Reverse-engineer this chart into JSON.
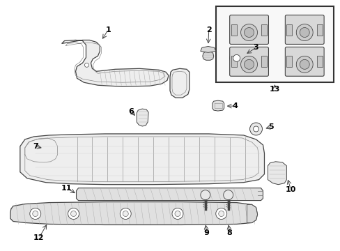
{
  "background_color": "#ffffff",
  "line_color": "#444444",
  "fig_width": 4.89,
  "fig_height": 3.6,
  "dpi": 100
}
